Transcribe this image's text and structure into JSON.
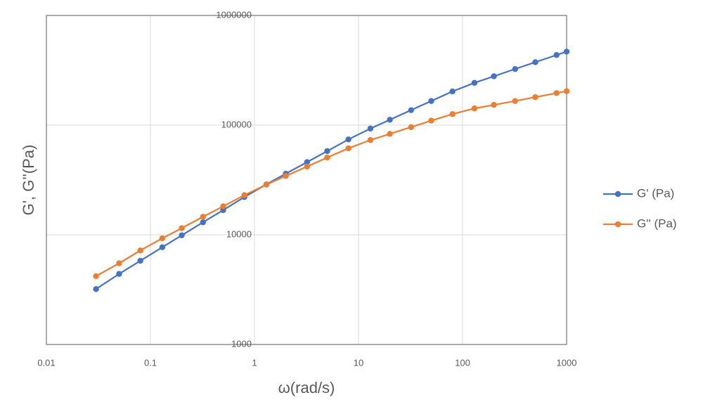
{
  "chart_data": {
    "type": "line",
    "x_label": "ω(rad/s)",
    "y_label": "G', G''(Pa)",
    "x_log": true,
    "y_log": true,
    "grid": true,
    "legend": "right",
    "xlim": [
      0.01,
      1000
    ],
    "xticks": [
      0.01,
      0.1,
      1,
      10,
      100,
      1000
    ],
    "ylim": [
      1000,
      1000000
    ],
    "yticks": [
      1000,
      10000,
      100000,
      1000000
    ],
    "x": [
      0.03,
      0.05,
      0.08,
      0.13,
      0.2,
      0.32,
      0.5,
      0.8,
      1.3,
      2,
      3.2,
      5,
      8,
      13,
      20,
      32,
      50,
      80,
      130,
      200,
      320,
      500,
      800,
      1000
    ],
    "series": [
      {
        "name": "G' (Pa)",
        "color": "#4472c4",
        "values": [
          3200,
          4400,
          5800,
          7700,
          9900,
          13000,
          16800,
          22100,
          28800,
          36100,
          46000,
          58000,
          74100,
          93100,
          112000,
          137000,
          166000,
          203000,
          243000,
          279000,
          325000,
          375000,
          436000,
          468000
        ]
      },
      {
        "name": "G'' (Pa)",
        "color": "#ed7d31",
        "values": [
          4200,
          5500,
          7200,
          9300,
          11500,
          14600,
          18200,
          23000,
          28700,
          34400,
          41900,
          50600,
          61500,
          73100,
          83200,
          95900,
          110000,
          126000,
          142000,
          153000,
          166000,
          180000,
          196000,
          204000
        ]
      }
    ]
  }
}
